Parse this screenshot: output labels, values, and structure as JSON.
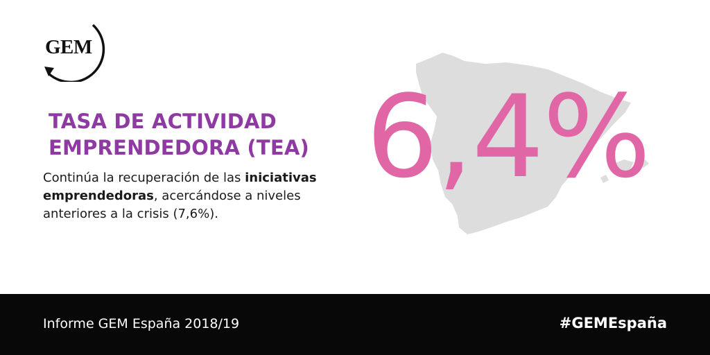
{
  "logo": {
    "text": "GEM"
  },
  "heading": {
    "line1": "TASA DE ACTIVIDAD",
    "line2": "EMPRENDEDORA (TEA)"
  },
  "description": {
    "part1": "Continúa la recuperación de las ",
    "bold1": "iniciativas emprendedoras",
    "part2": ", acercándose a niveles anteriores a la crisis (7,6%)."
  },
  "stat": {
    "value": "6,4%"
  },
  "map": {
    "icon": "spain-map-icon"
  },
  "footer": {
    "report": "Informe GEM España 2018/19",
    "hashtag": "#GEMEspaña"
  },
  "colors": {
    "heading": "#8e3aa2",
    "stat": "#e066a6",
    "map": "#dddddd",
    "footer_bg": "#080808"
  }
}
